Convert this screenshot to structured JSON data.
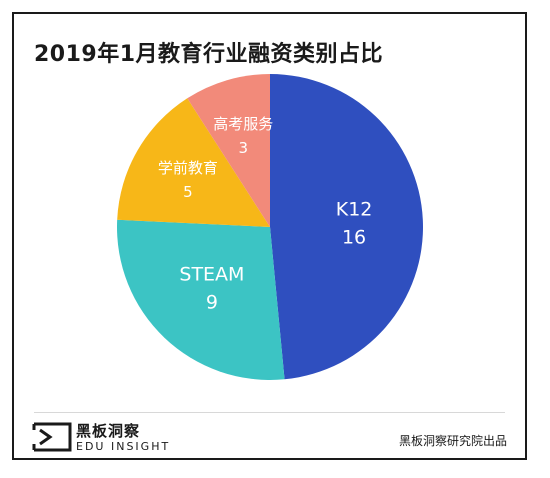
{
  "title": "2019年1月教育行业融资类别占比",
  "chart_data": {
    "type": "pie",
    "title": "2019年1月教育行业融资类别占比",
    "slices": [
      {
        "label": "K12",
        "value": 16,
        "color": "#2f4fbf"
      },
      {
        "label": "STEAM",
        "value": 9,
        "color": "#3cc4c4"
      },
      {
        "label": "学前教育",
        "value": 5,
        "color": "#f7b718"
      },
      {
        "label": "高考服务",
        "value": 3,
        "color": "#f28a7a"
      }
    ]
  },
  "footer": {
    "logo_cn": "黑板洞察",
    "logo_en": "EDU INSIGHT",
    "credit": "黑板洞察研究院出品"
  }
}
